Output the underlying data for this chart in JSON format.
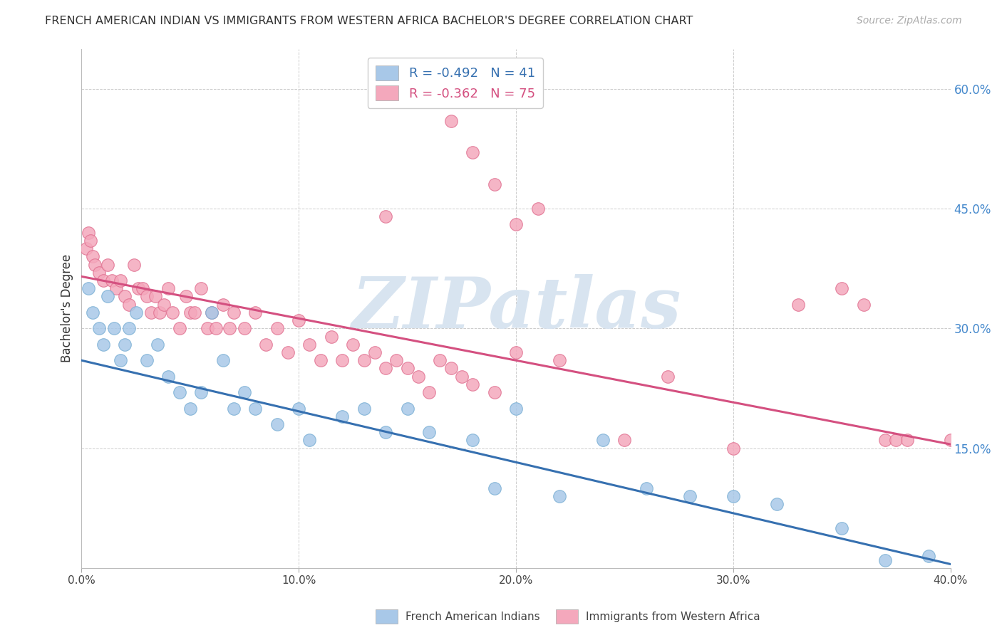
{
  "title": "FRENCH AMERICAN INDIAN VS IMMIGRANTS FROM WESTERN AFRICA BACHELOR'S DEGREE CORRELATION CHART",
  "source": "Source: ZipAtlas.com",
  "xlabel_vals": [
    0.0,
    10.0,
    20.0,
    30.0,
    40.0
  ],
  "ylabel_vals": [
    15.0,
    30.0,
    45.0,
    60.0
  ],
  "ylabel_label": "Bachelor's Degree",
  "legend_label1": "French American Indians",
  "legend_label2": "Immigrants from Western Africa",
  "R1": -0.492,
  "N1": 41,
  "R2": -0.362,
  "N2": 75,
  "color_blue": "#a8c8e8",
  "color_blue_edge": "#7aafd4",
  "color_pink": "#f4a8bc",
  "color_pink_edge": "#e07090",
  "color_blue_line": "#3670b0",
  "color_pink_line": "#d45080",
  "color_ytick": "#4488cc",
  "watermark": "ZIPatlas",
  "watermark_color": "#d8e4f0",
  "xlim": [
    0.0,
    40.0
  ],
  "ylim": [
    0.0,
    65.0
  ],
  "blue_x": [
    0.3,
    0.5,
    0.8,
    1.0,
    1.2,
    1.5,
    1.8,
    2.0,
    2.2,
    2.5,
    3.0,
    3.5,
    4.0,
    4.5,
    5.0,
    5.5,
    6.0,
    6.5,
    7.0,
    7.5,
    8.0,
    9.0,
    10.0,
    10.5,
    12.0,
    13.0,
    14.0,
    15.0,
    16.0,
    18.0,
    19.0,
    20.0,
    22.0,
    24.0,
    26.0,
    28.0,
    30.0,
    32.0,
    35.0,
    37.0,
    39.0
  ],
  "blue_y": [
    35.0,
    32.0,
    30.0,
    28.0,
    34.0,
    30.0,
    26.0,
    28.0,
    30.0,
    32.0,
    26.0,
    28.0,
    24.0,
    22.0,
    20.0,
    22.0,
    32.0,
    26.0,
    20.0,
    22.0,
    20.0,
    18.0,
    20.0,
    16.0,
    19.0,
    20.0,
    17.0,
    20.0,
    17.0,
    16.0,
    10.0,
    20.0,
    9.0,
    16.0,
    10.0,
    9.0,
    9.0,
    8.0,
    5.0,
    1.0,
    1.5
  ],
  "pink_x": [
    0.2,
    0.3,
    0.4,
    0.5,
    0.6,
    0.8,
    1.0,
    1.2,
    1.4,
    1.6,
    1.8,
    2.0,
    2.2,
    2.4,
    2.6,
    2.8,
    3.0,
    3.2,
    3.4,
    3.6,
    3.8,
    4.0,
    4.2,
    4.5,
    4.8,
    5.0,
    5.2,
    5.5,
    5.8,
    6.0,
    6.2,
    6.5,
    6.8,
    7.0,
    7.5,
    8.0,
    8.5,
    9.0,
    9.5,
    10.0,
    10.5,
    11.0,
    11.5,
    12.0,
    12.5,
    13.0,
    13.5,
    14.0,
    14.5,
    15.0,
    15.5,
    16.0,
    16.5,
    17.0,
    17.5,
    18.0,
    19.0,
    20.0,
    22.0,
    25.0,
    27.0,
    30.0,
    33.0,
    35.0,
    36.0,
    37.0,
    37.5,
    38.0,
    40.0,
    14.0,
    20.0,
    17.0,
    18.0,
    19.0,
    21.0
  ],
  "pink_y": [
    40.0,
    42.0,
    41.0,
    39.0,
    38.0,
    37.0,
    36.0,
    38.0,
    36.0,
    35.0,
    36.0,
    34.0,
    33.0,
    38.0,
    35.0,
    35.0,
    34.0,
    32.0,
    34.0,
    32.0,
    33.0,
    35.0,
    32.0,
    30.0,
    34.0,
    32.0,
    32.0,
    35.0,
    30.0,
    32.0,
    30.0,
    33.0,
    30.0,
    32.0,
    30.0,
    32.0,
    28.0,
    30.0,
    27.0,
    31.0,
    28.0,
    26.0,
    29.0,
    26.0,
    28.0,
    26.0,
    27.0,
    25.0,
    26.0,
    25.0,
    24.0,
    22.0,
    26.0,
    25.0,
    24.0,
    23.0,
    22.0,
    27.0,
    26.0,
    16.0,
    24.0,
    15.0,
    33.0,
    35.0,
    33.0,
    16.0,
    16.0,
    16.0,
    16.0,
    44.0,
    43.0,
    56.0,
    52.0,
    48.0,
    45.0
  ],
  "blue_line_x0": 0.0,
  "blue_line_y0": 26.0,
  "blue_line_x1": 40.0,
  "blue_line_y1": 0.5,
  "pink_line_x0": 0.0,
  "pink_line_y0": 36.5,
  "pink_line_x1": 40.0,
  "pink_line_y1": 15.5
}
